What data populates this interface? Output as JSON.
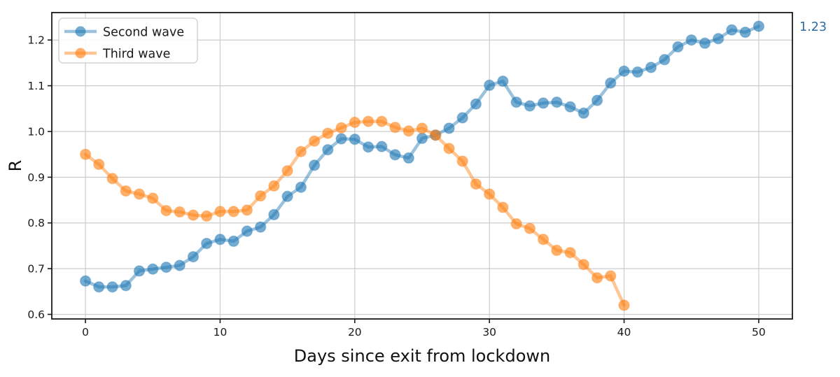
{
  "annotation": {
    "text": "1.23",
    "color": "#2d6ca2"
  },
  "legend": {
    "items": [
      {
        "label": "Second wave",
        "color": "#1f77b4"
      },
      {
        "label": "Third wave",
        "color": "#ff7f0e"
      }
    ]
  },
  "chart_data": {
    "type": "line",
    "title": "",
    "xlabel": "Days since exit from lockdown",
    "ylabel": "R",
    "xlim": [
      -2.5,
      52.5
    ],
    "ylim": [
      0.59,
      1.26
    ],
    "xticks": [
      0,
      10,
      20,
      30,
      40,
      50
    ],
    "xtick_labels": [
      "0",
      "10",
      "20",
      "30",
      "40",
      "50"
    ],
    "yticks": [
      0.6,
      0.7,
      0.8,
      0.9,
      1.0,
      1.1,
      1.2
    ],
    "ytick_labels": [
      "0.6",
      "0.7",
      "0.8",
      "0.9",
      "1.0",
      "1.1",
      "1.2"
    ],
    "grid": true,
    "legend_position": "upper left",
    "series": [
      {
        "name": "Second wave",
        "color": "#1f77b4",
        "x": [
          0,
          1,
          2,
          3,
          4,
          5,
          6,
          7,
          8,
          9,
          10,
          11,
          12,
          13,
          14,
          15,
          16,
          17,
          18,
          19,
          20,
          21,
          22,
          23,
          24,
          25,
          26,
          27,
          28,
          29,
          30,
          31,
          32,
          33,
          34,
          35,
          36,
          37,
          38,
          39,
          40,
          41,
          42,
          43,
          44,
          45,
          46,
          47,
          48,
          49,
          50
        ],
        "values": [
          0.673,
          0.66,
          0.66,
          0.663,
          0.695,
          0.699,
          0.703,
          0.707,
          0.726,
          0.755,
          0.764,
          0.76,
          0.782,
          0.791,
          0.818,
          0.858,
          0.878,
          0.926,
          0.96,
          0.984,
          0.983,
          0.966,
          0.967,
          0.949,
          0.942,
          0.985,
          0.992,
          1.007,
          1.03,
          1.06,
          1.101,
          1.11,
          1.064,
          1.056,
          1.062,
          1.064,
          1.054,
          1.04,
          1.068,
          1.106,
          1.132,
          1.13,
          1.14,
          1.157,
          1.185,
          1.2,
          1.193,
          1.203,
          1.222,
          1.217,
          1.23
        ]
      },
      {
        "name": "Third wave",
        "color": "#ff7f0e",
        "x": [
          0,
          1,
          2,
          3,
          4,
          5,
          6,
          7,
          8,
          9,
          10,
          11,
          12,
          13,
          14,
          15,
          16,
          17,
          18,
          19,
          20,
          21,
          22,
          23,
          24,
          25,
          26,
          27,
          28,
          29,
          30,
          31,
          32,
          33,
          34,
          35,
          36,
          37,
          38,
          39,
          40
        ],
        "values": [
          0.95,
          0.928,
          0.897,
          0.87,
          0.863,
          0.854,
          0.827,
          0.824,
          0.817,
          0.815,
          0.825,
          0.825,
          0.828,
          0.859,
          0.881,
          0.914,
          0.956,
          0.979,
          0.996,
          1.008,
          1.02,
          1.022,
          1.022,
          1.009,
          1.001,
          1.007,
          0.992,
          0.963,
          0.935,
          0.885,
          0.863,
          0.834,
          0.798,
          0.788,
          0.764,
          0.74,
          0.735,
          0.709,
          0.68,
          0.684,
          0.62
        ]
      }
    ]
  }
}
